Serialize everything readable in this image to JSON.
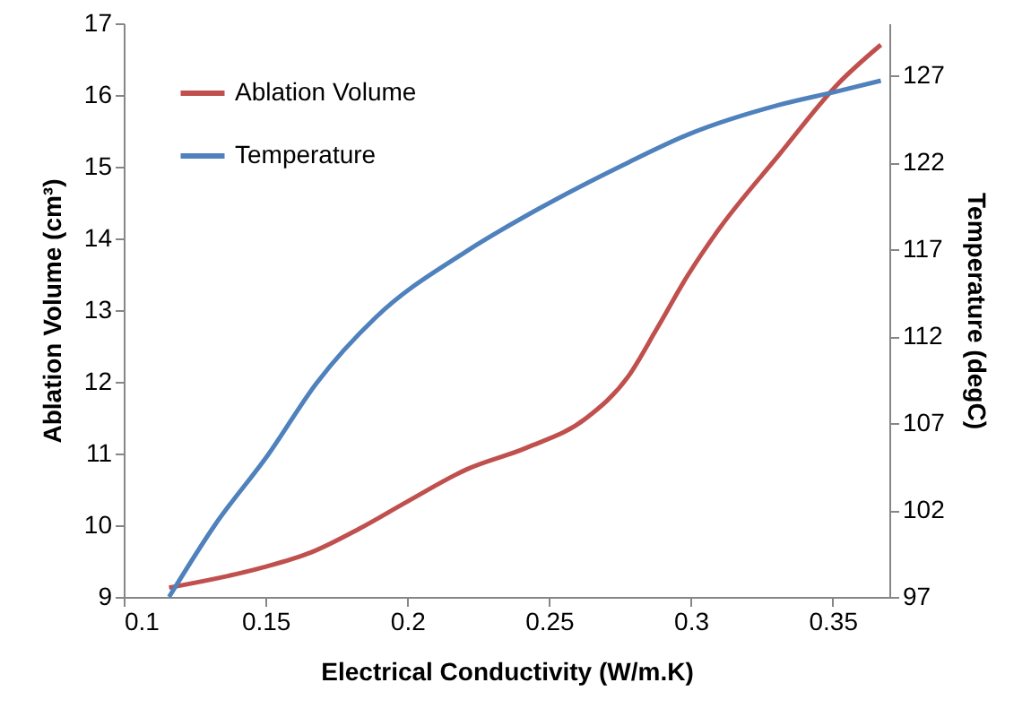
{
  "chart_data": {
    "type": "line",
    "xlabel": "Electrical Conductivity (W/m.K)",
    "ylabel": "Ablation Volume (cm³)",
    "y2label": "Temperature (degC)",
    "xlim": [
      0.1,
      0.37
    ],
    "xticks": [
      0.1,
      0.15,
      0.2,
      0.25,
      0.3,
      0.35
    ],
    "ylim": [
      9,
      17
    ],
    "yticks": [
      9,
      10,
      11,
      12,
      13,
      14,
      15,
      16,
      17
    ],
    "y2lim": [
      97,
      130
    ],
    "y2ticks": [
      97,
      102,
      107,
      112,
      117,
      122,
      127
    ],
    "grid": false,
    "legend": "top left",
    "marker": "none",
    "line_style": "solid",
    "series": [
      {
        "name": "Ablation Volume",
        "color": "#c0504d",
        "x": [
          0.116,
          0.149,
          0.166,
          0.183,
          0.2,
          0.221,
          0.242,
          0.263,
          0.278,
          0.288,
          0.299,
          0.309,
          0.331,
          0.352,
          0.367
        ],
        "values": [
          9.13,
          9.41,
          9.62,
          9.95,
          10.33,
          10.78,
          11.08,
          11.49,
          12.08,
          12.74,
          13.49,
          14.08,
          15.16,
          16.16,
          16.7
        ]
      },
      {
        "name": "Temperature",
        "color": "#4f81bd",
        "axis": "y2",
        "x": [
          0.116,
          0.132,
          0.151,
          0.168,
          0.189,
          0.221,
          0.246,
          0.278,
          0.299,
          0.331,
          0.352,
          0.367
        ],
        "values": [
          97.0,
          101.1,
          105.2,
          109.3,
          113.1,
          116.9,
          119.3,
          122.0,
          123.6,
          125.3,
          126.1,
          126.7
        ]
      }
    ]
  }
}
